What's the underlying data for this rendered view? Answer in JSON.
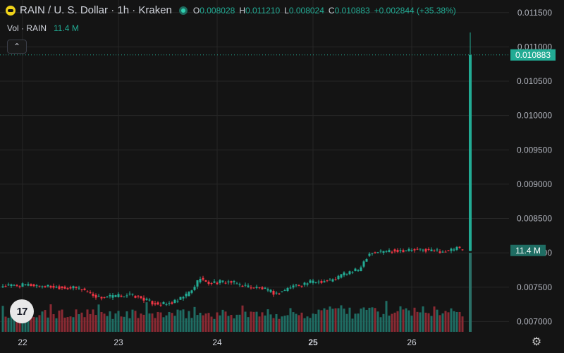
{
  "header": {
    "title": "RAIN / U. S. Dollar · 1h · Kraken",
    "ohlc": [
      {
        "key": "O",
        "value": "0.008028"
      },
      {
        "key": "H",
        "value": "0.011210"
      },
      {
        "key": "L",
        "value": "0.008024"
      },
      {
        "key": "C",
        "value": "0.010883"
      }
    ],
    "change": "+0.002844 (+35.38%)"
  },
  "volume_legend": {
    "label": "Vol · RAIN",
    "value": "11.4 M"
  },
  "icons": {
    "collapse": "chevron-up-icon",
    "logo": "tradingview-logo",
    "settings": "gear-icon"
  },
  "logo_text": "17",
  "colors": {
    "up": "#22ab94",
    "down": "#f23645",
    "vol_up": "#1f6d63",
    "vol_down": "#8a2a33",
    "background": "#141414"
  },
  "chart_data": {
    "type": "candlestick",
    "title": "RAIN / U. S. Dollar · 1h · Kraken",
    "price_axis": {
      "range": [
        0.00685,
        0.01158
      ],
      "ticks": [
        "0.011500",
        "0.011000",
        "0.010500",
        "0.010000",
        "0.009500",
        "0.009000",
        "0.008500",
        "0.008000",
        "0.007500",
        "0.007000"
      ],
      "last_price_label": "0.010883",
      "last_price": 0.010883,
      "volume_label": "11.4 M",
      "volume_label_price": 0.008035
    },
    "time_axis": {
      "ticks": [
        {
          "label": "22",
          "bold": false
        },
        {
          "label": "23",
          "bold": false
        },
        {
          "label": "24",
          "bold": false
        },
        {
          "label": "25",
          "bold": true
        },
        {
          "label": "26",
          "bold": false
        }
      ]
    },
    "grid": true,
    "series": [
      {
        "name": "price",
        "anchors": [
          [
            0,
            0.00752
          ],
          [
            10,
            0.00753
          ],
          [
            20,
            0.0075
          ],
          [
            28,
            0.00748
          ],
          [
            31,
            0.00741
          ],
          [
            34,
            0.00735
          ],
          [
            40,
            0.00737
          ],
          [
            45,
            0.00739
          ],
          [
            50,
            0.00733
          ],
          [
            53,
            0.00727
          ],
          [
            58,
            0.00725
          ],
          [
            62,
            0.0073
          ],
          [
            67,
            0.00745
          ],
          [
            70,
            0.00765
          ],
          [
            72,
            0.00756
          ],
          [
            80,
            0.00758
          ],
          [
            86,
            0.00752
          ],
          [
            92,
            0.00748
          ],
          [
            97,
            0.0074
          ],
          [
            103,
            0.00752
          ],
          [
            110,
            0.00758
          ],
          [
            117,
            0.0076
          ],
          [
            121,
            0.0077
          ],
          [
            126,
            0.00775
          ],
          [
            130,
            0.008
          ],
          [
            136,
            0.00803
          ],
          [
            144,
            0.00804
          ],
          [
            150,
            0.00804
          ],
          [
            158,
            0.00802
          ],
          [
            161,
            0.00807
          ],
          [
            163,
            0.00803
          ]
        ],
        "final_candle": {
          "open": 0.008028,
          "high": 0.01121,
          "low": 0.008024,
          "close": 0.010883
        }
      }
    ]
  }
}
